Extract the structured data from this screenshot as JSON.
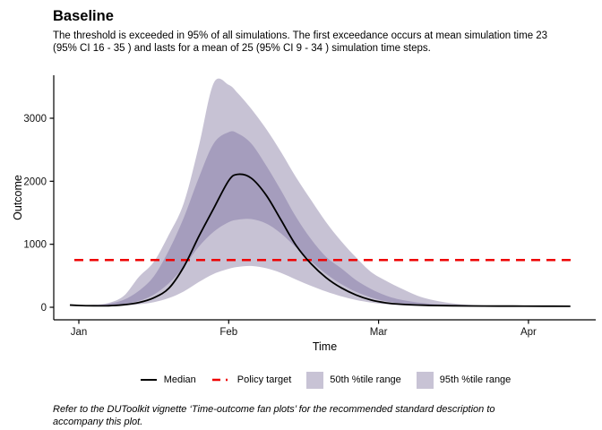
{
  "header": {
    "title": "Baseline",
    "subtitle_lines": [
      "The threshold is exceeded in 95% of all simulations. The first exceedance occurs at mean simulation time 23",
      "(95% CI 16 - 35 ) and lasts for a mean of 25 (95% CI 9 - 34 ) simulation time steps."
    ]
  },
  "caption_lines": [
    "Refer to the DUToolkit vignette ‘Time-outcome fan plots’ for the recommended standard description to",
    "accompany this plot."
  ],
  "colors": {
    "median": "#000000",
    "policy_target": "#ee0000",
    "band_50": "#a59dbd",
    "band_95": "#c7c2d4",
    "legend_swatch": "#c8c3d5",
    "axis": "#000000"
  },
  "legend": {
    "items": [
      {
        "label": "Median",
        "type": "line"
      },
      {
        "label": "Policy target",
        "type": "dashed-line"
      },
      {
        "label": "50th %tile range",
        "type": "swatch"
      },
      {
        "label": "95th %tile range",
        "type": "swatch"
      }
    ]
  },
  "chart_data": {
    "type": "area",
    "subtype": "fan-plot",
    "title": "Baseline",
    "xlabel": "Time",
    "ylabel": "Outcome",
    "x_tick_labels": [
      "Jan",
      "Feb",
      "Mar",
      "Apr"
    ],
    "x_tick_months": [
      0,
      1,
      2,
      3
    ],
    "x_unit": "months (0 = Jan)",
    "y_ticks": [
      0,
      1000,
      2000,
      3000
    ],
    "ylim": [
      0,
      3680
    ],
    "xlim_months": [
      -0.17,
      3.45
    ],
    "grid": false,
    "legend_position": "bottom",
    "t_months": [
      -0.06,
      0.0,
      0.1,
      0.2,
      0.3,
      0.4,
      0.5,
      0.6,
      0.7,
      0.8,
      0.9,
      1.0,
      1.06,
      1.15,
      1.25,
      1.35,
      1.45,
      1.55,
      1.65,
      1.75,
      1.85,
      1.95,
      2.05,
      2.15,
      2.3,
      2.5,
      2.7,
      2.9,
      3.1,
      3.28
    ],
    "series": [
      {
        "name": "Median",
        "type": "line",
        "values": [
          35,
          28,
          24,
          24,
          40,
          75,
          150,
          300,
          640,
          1120,
          1570,
          2010,
          2110,
          2050,
          1780,
          1380,
          980,
          690,
          470,
          310,
          195,
          115,
          70,
          48,
          32,
          24,
          20,
          18,
          17,
          16
        ]
      },
      {
        "name": "Policy target",
        "type": "hline",
        "value": 750,
        "t_start": -0.03,
        "t_end": 3.29
      },
      {
        "name": "50th %tile range",
        "type": "band",
        "upper": [
          38,
          33,
          35,
          55,
          120,
          260,
          490,
          900,
          1420,
          2050,
          2600,
          2780,
          2760,
          2600,
          2250,
          1850,
          1430,
          1080,
          800,
          620,
          430,
          290,
          185,
          120,
          65,
          32,
          22,
          17,
          15,
          15
        ],
        "lower": [
          30,
          26,
          22,
          25,
          50,
          100,
          200,
          380,
          640,
          960,
          1200,
          1350,
          1390,
          1400,
          1330,
          1170,
          950,
          730,
          530,
          370,
          245,
          155,
          95,
          62,
          38,
          22,
          16,
          14,
          13,
          13
        ]
      },
      {
        "name": "95th %tile range",
        "type": "band",
        "upper": [
          40,
          36,
          40,
          70,
          180,
          480,
          720,
          1150,
          1650,
          2550,
          3560,
          3530,
          3400,
          3150,
          2830,
          2460,
          2060,
          1700,
          1350,
          1050,
          790,
          560,
          420,
          300,
          150,
          60,
          30,
          22,
          18,
          17
        ],
        "lower": [
          25,
          22,
          18,
          18,
          28,
          45,
          80,
          145,
          250,
          400,
          530,
          610,
          640,
          655,
          620,
          545,
          440,
          340,
          250,
          175,
          115,
          75,
          48,
          32,
          20,
          13,
          10,
          9,
          9,
          9
        ]
      }
    ]
  }
}
